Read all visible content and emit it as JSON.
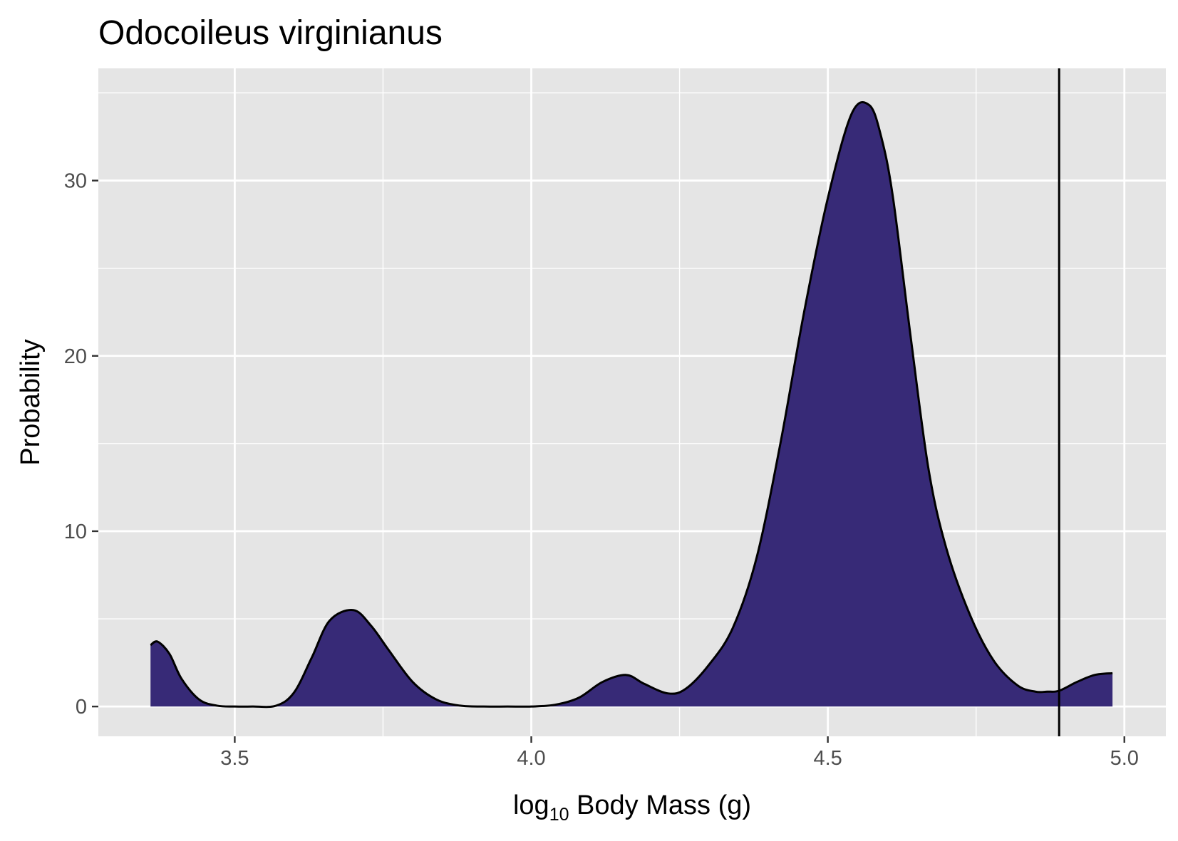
{
  "chart_data": {
    "type": "area",
    "title": "Odocoileus virginianus",
    "xlabel": {
      "prefix": "log",
      "subscript": "10",
      "suffix": " Body Mass (g)"
    },
    "ylabel": "Probability",
    "xlim": [
      3.27,
      5.07
    ],
    "ylim": [
      -1.7,
      36.4
    ],
    "x_ticks": [
      {
        "value": 3.5,
        "label": "3.5"
      },
      {
        "value": 4.0,
        "label": "4.0"
      },
      {
        "value": 4.5,
        "label": "4.5"
      },
      {
        "value": 5.0,
        "label": "5.0"
      }
    ],
    "y_ticks": [
      {
        "value": 0,
        "label": "0"
      },
      {
        "value": 10,
        "label": "10"
      },
      {
        "value": 20,
        "label": "20"
      },
      {
        "value": 30,
        "label": "30"
      }
    ],
    "grid": true,
    "legend": "none",
    "fill_color": "#372A77",
    "line_color": "#000000",
    "vline": 4.89,
    "series": [
      {
        "x": [
          3.358,
          3.37,
          3.39,
          3.41,
          3.44,
          3.47,
          3.5,
          3.53,
          3.57,
          3.6,
          3.63,
          3.66,
          3.7,
          3.73,
          3.76,
          3.8,
          3.84,
          3.88,
          3.92,
          3.96,
          4.0,
          4.04,
          4.08,
          4.12,
          4.16,
          4.19,
          4.23,
          4.26,
          4.3,
          4.34,
          4.38,
          4.42,
          4.46,
          4.5,
          4.54,
          4.57,
          4.59,
          4.61,
          4.64,
          4.67,
          4.7,
          4.74,
          4.78,
          4.82,
          4.85,
          4.87,
          4.89,
          4.92,
          4.95,
          4.98
        ],
        "y": [
          3.5,
          3.7,
          3.0,
          1.6,
          0.4,
          0.05,
          0.0,
          0.0,
          0.05,
          0.8,
          2.8,
          4.9,
          5.5,
          4.6,
          3.2,
          1.4,
          0.4,
          0.05,
          0.0,
          0.0,
          0.0,
          0.1,
          0.5,
          1.4,
          1.8,
          1.3,
          0.75,
          1.0,
          2.4,
          4.5,
          8.5,
          15.0,
          22.5,
          29.0,
          33.8,
          34.3,
          32.5,
          29.0,
          21.0,
          13.5,
          9.0,
          5.2,
          2.6,
          1.2,
          0.85,
          0.85,
          0.9,
          1.4,
          1.8,
          1.9
        ]
      }
    ]
  }
}
